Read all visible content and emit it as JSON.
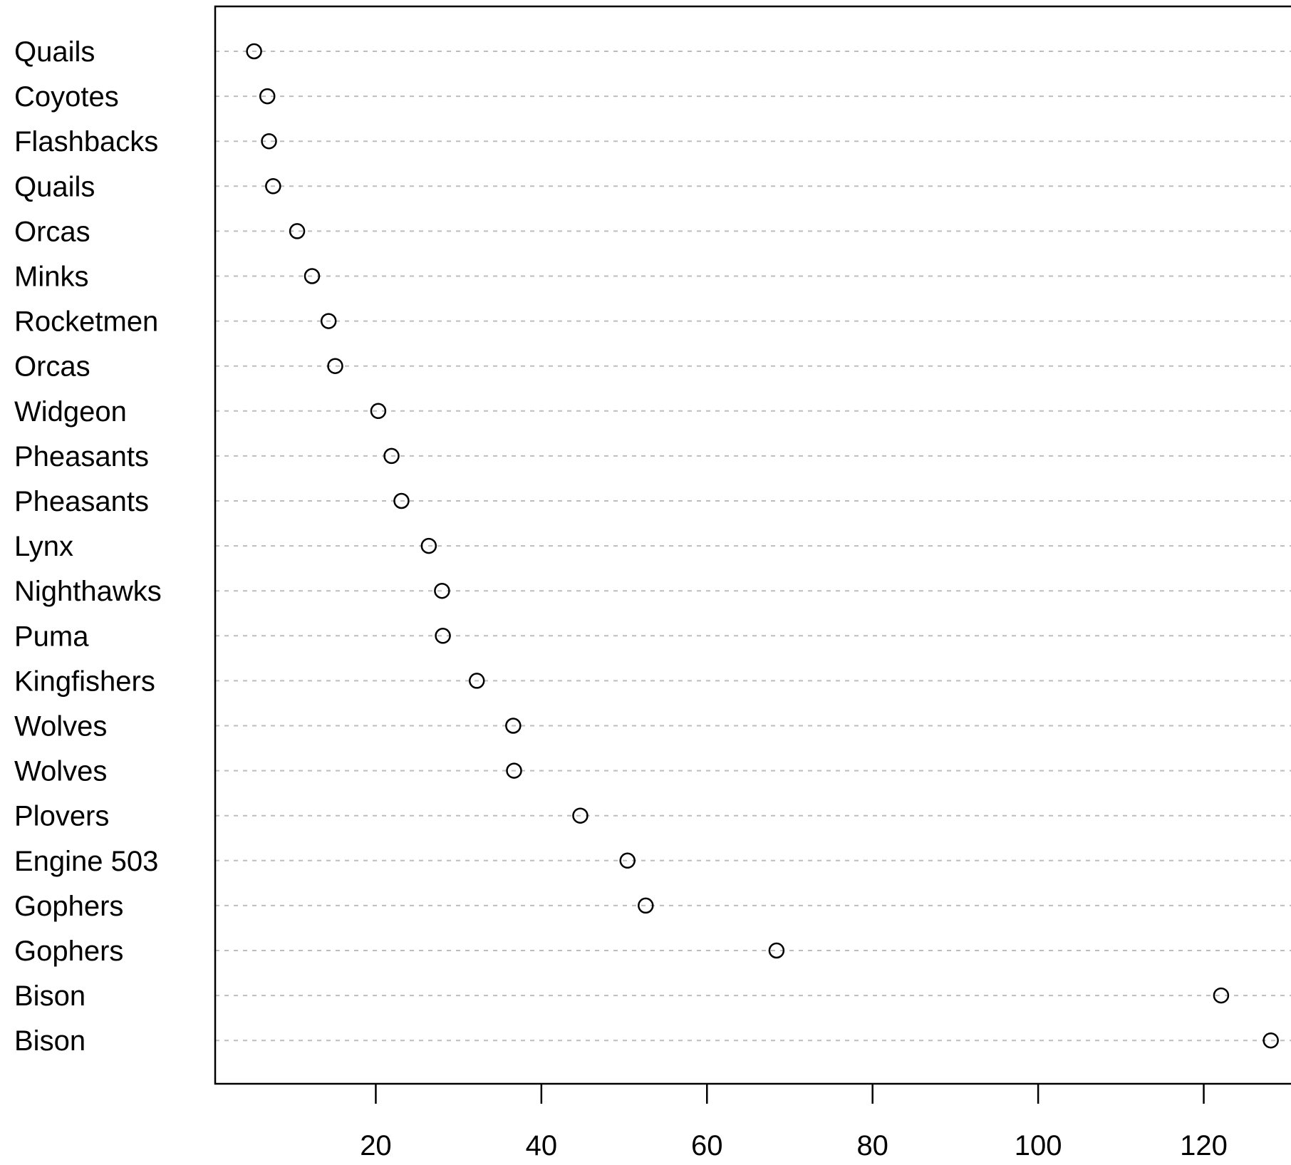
{
  "chart_data": {
    "type": "scatter",
    "title": "",
    "xlabel": "",
    "ylabel": "",
    "categories": [
      "Quails",
      "Coyotes",
      "Flashbacks",
      "Quails",
      "Orcas",
      "Minks",
      "Rocketmen",
      "Orcas",
      "Widgeon",
      "Pheasants",
      "Pheasants",
      "Lynx",
      "Nighthawks",
      "Puma",
      "Kingfishers",
      "Wolves",
      "Wolves",
      "Plovers",
      "Engine 503",
      "Gophers",
      "Gophers",
      "Bison",
      "Bison"
    ],
    "values": [
      5.3,
      6.9,
      7.1,
      7.6,
      10.5,
      12.3,
      14.3,
      15.1,
      20.3,
      21.9,
      23.1,
      26.4,
      28.0,
      28.1,
      32.2,
      36.6,
      36.7,
      44.7,
      50.4,
      52.6,
      68.4,
      122.1,
      128.1
    ],
    "xlim": [
      0.6,
      131.4
    ],
    "xticks": [
      20,
      40,
      60,
      80,
      100,
      120
    ],
    "grid": "dotted horizontal guide per row",
    "marker": "open circle"
  }
}
